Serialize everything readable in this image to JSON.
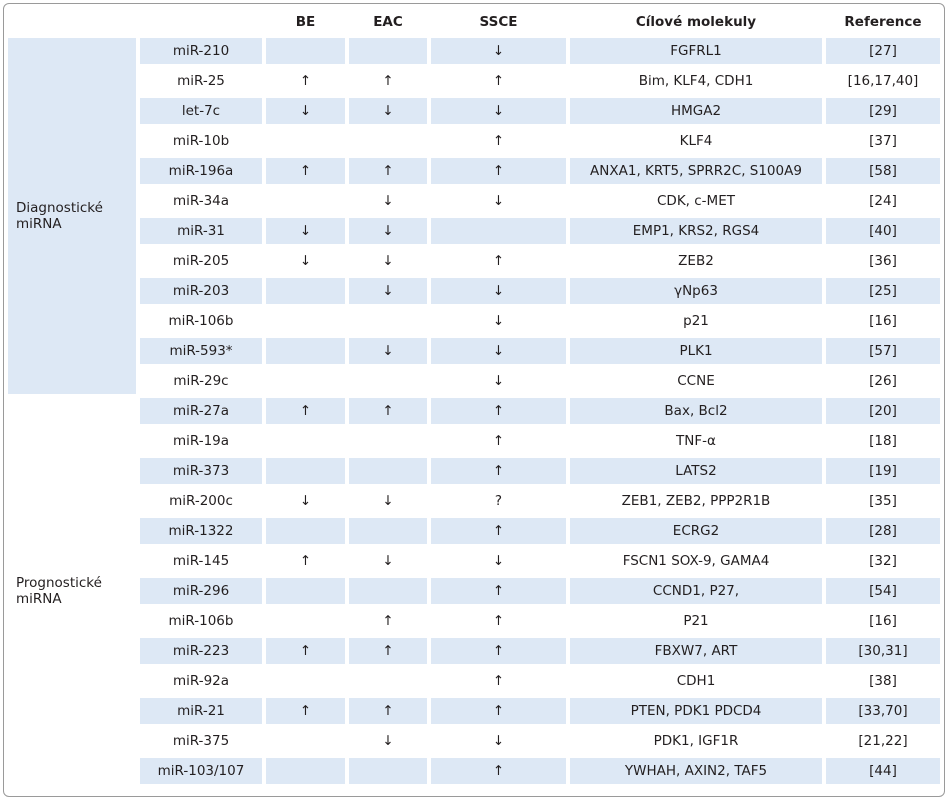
{
  "header": [
    "BE",
    "EAC",
    "SSCE",
    "Cílové molekuly",
    "Reference"
  ],
  "groups": [
    {
      "label_lines": [
        "Diagnostické",
        "miRNA"
      ],
      "rows": [
        [
          "miR-210",
          null,
          null,
          "↓",
          "FGFRL1",
          "[27]"
        ],
        [
          "miR-25",
          "↑",
          "↑",
          "↑",
          "Bim, KLF4, CDH1",
          "[16,17,40]"
        ],
        [
          "let-7c",
          "↓",
          "↓",
          "↓",
          "HMGA2",
          "[29]"
        ],
        [
          "miR-10b",
          null,
          null,
          "↑",
          "KLF4",
          "[37]"
        ],
        [
          "miR-196a",
          "↑",
          "↑",
          "↑",
          "ANXA1, KRT5, SPRR2C, S100A9",
          "[58]"
        ],
        [
          "miR-34a",
          null,
          "↓",
          "↓",
          "CDK, c-MET",
          "[24]"
        ],
        [
          "miR-31",
          "↓",
          "↓",
          null,
          "EMP1, KRS2, RGS4",
          "[40]"
        ],
        [
          "miR-205",
          "↓",
          "↓",
          "↑",
          "ZEB2",
          "[36]"
        ],
        [
          "miR-203",
          null,
          "↓",
          "↓",
          "γNp63",
          "[25]"
        ],
        [
          "miR-106b",
          null,
          null,
          "↓",
          "p21",
          "[16]"
        ],
        [
          "miR-593*",
          null,
          "↓",
          "↓",
          "PLK1",
          "[57]"
        ],
        [
          "miR-29c",
          null,
          null,
          "↓",
          "CCNE",
          "[26]"
        ]
      ]
    },
    {
      "label_lines": [
        "Prognostické",
        "miRNA"
      ],
      "rows": [
        [
          "miR-27a",
          "↑",
          "↑",
          "↑",
          "Bax, Bcl2",
          "[20]"
        ],
        [
          "miR-19a",
          null,
          null,
          "↑",
          "TNF-α",
          "[18]"
        ],
        [
          "miR-373",
          null,
          null,
          "↑",
          "LATS2",
          "[19]"
        ],
        [
          "miR-200c",
          "↓",
          "↓",
          "?",
          "ZEB1, ZEB2, PPP2R1B",
          "[35]"
        ],
        [
          "miR-1322",
          null,
          null,
          "↑",
          "ECRG2",
          "[28]"
        ],
        [
          "miR-145",
          "↑",
          "↓",
          "↓",
          "FSCN1 SOX-9, GAMA4",
          "[32]"
        ],
        [
          "miR-296",
          null,
          null,
          "↑",
          "CCND1, P27,",
          "[54]"
        ],
        [
          "miR-106b",
          null,
          "↑",
          "↑",
          "P21",
          "[16]"
        ],
        [
          "miR-223",
          "↑",
          "↑",
          "↑",
          "FBXW7, ART",
          "[30,31]"
        ],
        [
          "miR-92a",
          null,
          null,
          "↑",
          "CDH1",
          "[38]"
        ],
        [
          "miR-21",
          "↑",
          "↑",
          "↑",
          "PTEN, PDK1 PDCD4",
          "[33,70]"
        ],
        [
          "miR-375",
          null,
          "↓",
          "↓",
          "PDK1, IGF1R",
          "[21,22]"
        ],
        [
          "miR-103/107",
          null,
          null,
          "↑",
          "YWHAH, AXIN2, TAF5",
          "[44]"
        ]
      ]
    }
  ]
}
